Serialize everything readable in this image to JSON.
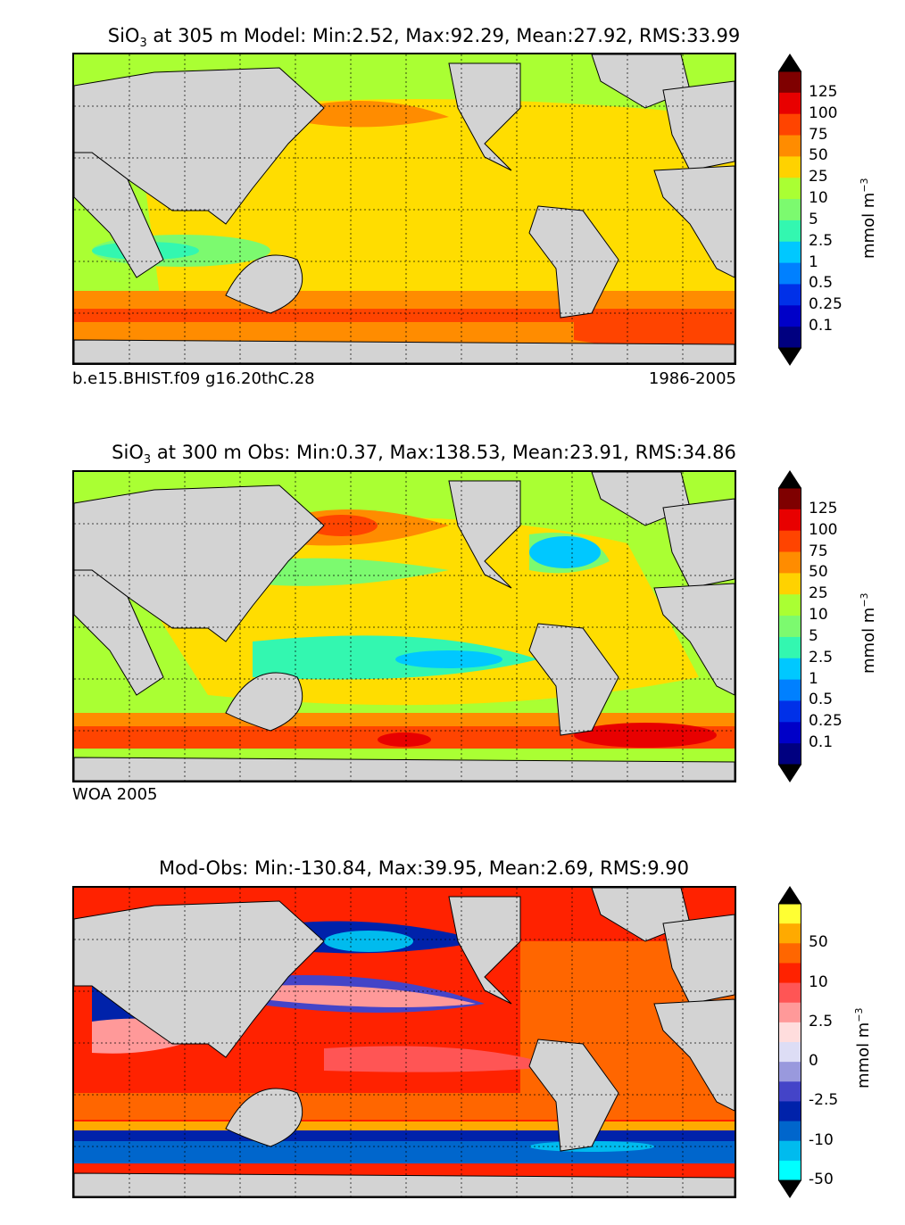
{
  "panels": [
    {
      "title_var": "SiO",
      "title_sub": "3",
      "title_rest": " at 305 m Model: Min:2.52, Max:92.29, Mean:27.92, RMS:33.99",
      "footer_left": "b.e15.BHIST.f09 g16.20thC.28",
      "footer_right": "1986-2005",
      "units": "mmol m",
      "units_exp": "−3",
      "colorbar_labels": [
        "125",
        "100",
        "75",
        "50",
        "25",
        "10",
        "5",
        "2.5",
        "1",
        "0.5",
        "0.25",
        "0.1"
      ],
      "colorbar_colors": [
        "#7f0000",
        "#e80000",
        "#ff4400",
        "#ff8c00",
        "#ffd200",
        "#aaff33",
        "#7cfa6f",
        "#33f7b0",
        "#00c8ff",
        "#0080ff",
        "#0030e8",
        "#0000c8",
        "#000080"
      ],
      "top_color": "#7f0000",
      "bottom_color": "#000080"
    },
    {
      "title_var": "SiO",
      "title_sub": "3",
      "title_rest": " at 300 m Obs: Min:0.37, Max:138.53, Mean:23.91, RMS:34.86",
      "footer_left": "WOA 2005",
      "footer_right": "",
      "units": "mmol m",
      "units_exp": "−3",
      "colorbar_labels": [
        "125",
        "100",
        "75",
        "50",
        "25",
        "10",
        "5",
        "2.5",
        "1",
        "0.5",
        "0.25",
        "0.1"
      ],
      "colorbar_colors": [
        "#7f0000",
        "#e80000",
        "#ff4400",
        "#ff8c00",
        "#ffd200",
        "#aaff33",
        "#7cfa6f",
        "#33f7b0",
        "#00c8ff",
        "#0080ff",
        "#0030e8",
        "#0000c8",
        "#000080"
      ],
      "top_color": "#7f0000",
      "bottom_color": "#000080"
    },
    {
      "title_var": "",
      "title_sub": "",
      "title_rest": "Mod-Obs: Min:-130.84, Max:39.95, Mean:2.69, RMS:9.90",
      "footer_left": "",
      "footer_right": "",
      "units": "mmol m",
      "units_exp": "−3",
      "colorbar_labels": [
        "50",
        "10",
        "2.5",
        "0",
        "-2.5",
        "-10",
        "-50"
      ],
      "colorbar_colors": [
        "#ffff33",
        "#ffaa00",
        "#ff6600",
        "#ff2200",
        "#ff5555",
        "#ff9999",
        "#ffdddd",
        "#ddddf5",
        "#9999dd",
        "#4444c8",
        "#0022aa",
        "#0066cc",
        "#00bbee",
        "#00ffff"
      ],
      "top_color": "#ffff33",
      "bottom_color": "#00ffff"
    }
  ],
  "chart_data": [
    {
      "type": "heatmap",
      "title": "SiO3 at 305 m Model: Min:2.52, Max:92.29, Mean:27.92, RMS:33.99",
      "source": "b.e15.BHIST.f09 g16.20thC.28",
      "period": "1986-2005",
      "stats": {
        "min": 2.52,
        "max": 92.29,
        "mean": 27.92,
        "rms": 33.99
      },
      "depth_m": 305,
      "levels": [
        0.1,
        0.25,
        0.5,
        1,
        2.5,
        5,
        10,
        25,
        50,
        75,
        100,
        125
      ],
      "units": "mmol m-3"
    },
    {
      "type": "heatmap",
      "title": "SiO3 at 300 m Obs: Min:0.37, Max:138.53, Mean:23.91, RMS:34.86",
      "source": "WOA 2005",
      "stats": {
        "min": 0.37,
        "max": 138.53,
        "mean": 23.91,
        "rms": 34.86
      },
      "depth_m": 300,
      "levels": [
        0.1,
        0.25,
        0.5,
        1,
        2.5,
        5,
        10,
        25,
        50,
        75,
        100,
        125
      ],
      "units": "mmol m-3"
    },
    {
      "type": "heatmap",
      "title": "Mod-Obs: Min:-130.84, Max:39.95, Mean:2.69, RMS:9.90",
      "stats": {
        "min": -130.84,
        "max": 39.95,
        "mean": 2.69,
        "rms": 9.9
      },
      "levels": [
        -50,
        -10,
        -2.5,
        0,
        2.5,
        10,
        50
      ],
      "units": "mmol m-3"
    }
  ]
}
